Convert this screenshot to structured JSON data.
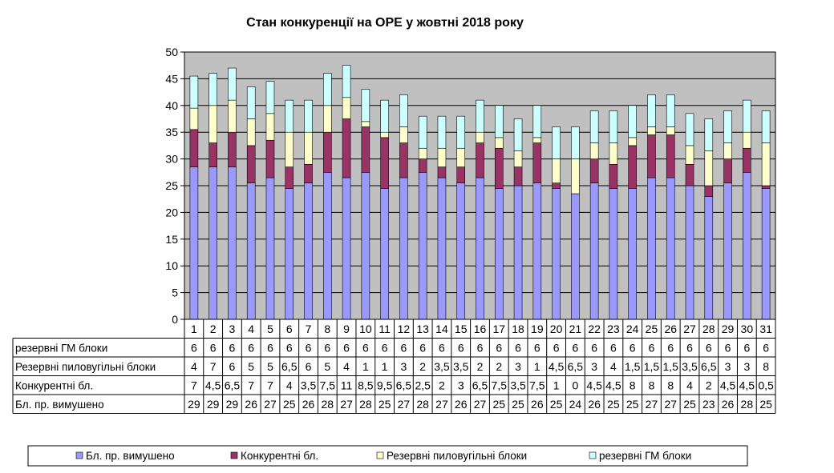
{
  "chart_data": {
    "type": "bar",
    "stacked": true,
    "title": "Стан конкуренції на ОРЕ  у жовтні 2018 року",
    "xlabel": "",
    "ylabel": "",
    "ylim": [
      0,
      50
    ],
    "yticks": [
      0,
      5,
      10,
      15,
      20,
      25,
      30,
      35,
      40,
      45,
      50
    ],
    "grid": true,
    "legend_position": "bottom",
    "categories": [
      "1",
      "2",
      "3",
      "4",
      "5",
      "6",
      "7",
      "8",
      "9",
      "10",
      "11",
      "12",
      "13",
      "14",
      "15",
      "16",
      "17",
      "18",
      "19",
      "20",
      "21",
      "22",
      "23",
      "24",
      "25",
      "26",
      "27",
      "28",
      "29",
      "30",
      "31"
    ],
    "series": [
      {
        "name": "Бл. пр. вимушено",
        "color": "#9999ff",
        "values": [
          28.5,
          28.5,
          28.5,
          25.5,
          26.5,
          24.5,
          25.5,
          27.5,
          26.5,
          27.5,
          24.5,
          26.5,
          27.5,
          26.5,
          25.5,
          26.5,
          24.5,
          25,
          25.5,
          24.5,
          23.5,
          25.5,
          24.5,
          24.5,
          26.5,
          26.5,
          25,
          23,
          25.5,
          27.5,
          24.5
        ],
        "labels": [
          "29",
          "29",
          "29",
          "26",
          "27",
          "25",
          "26",
          "28",
          "27",
          "28",
          "25",
          "27",
          "28",
          "27",
          "26",
          "27",
          "25",
          "25",
          "26",
          "25",
          "24",
          "26",
          "25",
          "25",
          "27",
          "27",
          "25",
          "23",
          "26",
          "28",
          "25"
        ]
      },
      {
        "name": "Конкурентні  бл.",
        "color": "#993366",
        "values": [
          7,
          4.5,
          6.5,
          7,
          7,
          4,
          3.5,
          7.5,
          11,
          8.5,
          9.5,
          6.5,
          2.5,
          2,
          3,
          6.5,
          7.5,
          3.5,
          7.5,
          1,
          0,
          4.5,
          4.5,
          8,
          8,
          8,
          4,
          2,
          4.5,
          4.5,
          0.5
        ],
        "labels": [
          "7",
          "4,5",
          "6,5",
          "7",
          "7",
          "4",
          "3,5",
          "7,5",
          "11",
          "8,5",
          "9,5",
          "6,5",
          "2,5",
          "2",
          "3",
          "6,5",
          "7,5",
          "3,5",
          "7,5",
          "1",
          "0",
          "4,5",
          "4,5",
          "8",
          "8",
          "8",
          "4",
          "2",
          "4,5",
          "4,5",
          "0,5"
        ]
      },
      {
        "name": "Резервні пиловугільні  блоки",
        "color": "#ffffcc",
        "values": [
          4,
          7,
          6,
          5,
          5,
          6.5,
          6,
          5,
          4,
          1,
          1,
          3,
          2,
          3.5,
          3.5,
          2,
          2,
          3,
          1,
          4.5,
          6.5,
          3,
          4,
          1.5,
          1.5,
          1.5,
          3.5,
          6.5,
          3,
          3,
          8
        ],
        "labels": [
          "4",
          "7",
          "6",
          "5",
          "5",
          "6,5",
          "6",
          "5",
          "4",
          "1",
          "1",
          "3",
          "2",
          "3,5",
          "3,5",
          "2",
          "2",
          "3",
          "1",
          "4,5",
          "6,5",
          "3",
          "4",
          "1,5",
          "1,5",
          "1,5",
          "3,5",
          "6,5",
          "3",
          "3",
          "8"
        ]
      },
      {
        "name": "резервні ГМ блоки",
        "color": "#ccffff",
        "values": [
          6,
          6,
          6,
          6,
          6,
          6,
          6,
          6,
          6,
          6,
          6,
          6,
          6,
          6,
          6,
          6,
          6,
          6,
          6,
          6,
          6,
          6,
          6,
          6,
          6,
          6,
          6,
          6,
          6,
          6,
          6
        ],
        "labels": [
          "6",
          "6",
          "6",
          "6",
          "6",
          "6",
          "6",
          "6",
          "6",
          "6",
          "6",
          "6",
          "6",
          "6",
          "6",
          "6",
          "6",
          "6",
          "6",
          "6",
          "6",
          "6",
          "6",
          "6",
          "6",
          "6",
          "6",
          "6",
          "6",
          "6",
          "6"
        ]
      }
    ],
    "table_rows": [
      "резервні ГМ блоки",
      "Резервні пиловугільні  блоки",
      "Конкурентні  бл.",
      "Бл. пр. вимушено"
    ],
    "legend_order": [
      "Бл. пр. вимушено",
      "Конкурентні  бл.",
      "Резервні пиловугільні  блоки",
      "резервні ГМ блоки"
    ]
  },
  "colors": {
    "plot_background": "#c0c0c0",
    "gridline": "#000000",
    "border": "#000000"
  }
}
